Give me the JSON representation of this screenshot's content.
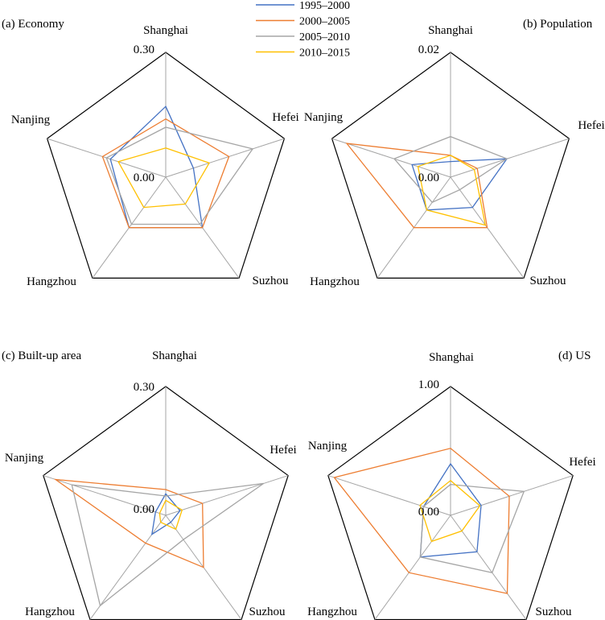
{
  "legend": [
    {
      "name": "1995–2000",
      "color": "#4472c4"
    },
    {
      "name": "2000–2005",
      "color": "#ed7d31"
    },
    {
      "name": "2005–2010",
      "color": "#a5a5a5"
    },
    {
      "name": "2010–2015",
      "color": "#ffc000"
    }
  ],
  "chart_data": [
    {
      "type": "radar",
      "title": "(a) Economy",
      "axes": [
        "Shanghai",
        "Hefei",
        "Suzhou",
        "Hangzhou",
        "Nanjing"
      ],
      "range": [
        0,
        0.3
      ],
      "tick_labels": [
        "0.00",
        "0.30"
      ],
      "series": [
        {
          "name": "1995–2000",
          "values": [
            0.17,
            0.07,
            0.15,
            0.15,
            0.14
          ]
        },
        {
          "name": "2000–2005",
          "values": [
            0.14,
            0.16,
            0.15,
            0.15,
            0.16
          ]
        },
        {
          "name": "2005–2010",
          "values": [
            0.12,
            0.22,
            0.14,
            0.14,
            0.15
          ]
        },
        {
          "name": "2010–2015",
          "values": [
            0.07,
            0.11,
            0.08,
            0.09,
            0.12
          ]
        }
      ]
    },
    {
      "type": "radar",
      "title": "(b) Population",
      "axes": [
        "Shanghai",
        "Hefei",
        "Suzhou",
        "Hangzhou",
        "Nanjing"
      ],
      "range": [
        0,
        0.02
      ],
      "tick_labels": [
        "0.00",
        "0.02"
      ],
      "series": [
        {
          "name": "1995–2000",
          "values": [
            0.0025,
            0.0095,
            0.006,
            0.0065,
            0.0065
          ]
        },
        {
          "name": "2000–2005",
          "values": [
            0.0035,
            0.0045,
            0.01,
            0.01,
            0.0175
          ]
        },
        {
          "name": "2005–2010",
          "values": [
            0.0065,
            0.0095,
            0.0025,
            0.005,
            0.0095
          ]
        },
        {
          "name": "2010–2015",
          "values": [
            0.0035,
            0.004,
            0.0095,
            0.0065,
            0.0055
          ]
        }
      ]
    },
    {
      "type": "radar",
      "title": "(c) Built-up area",
      "axes": [
        "Shanghai",
        "Hefei",
        "Suzhou",
        "Hangzhou",
        "Nanjing"
      ],
      "range": [
        0,
        0.3
      ],
      "tick_labels": [
        "0.00",
        "0.30"
      ],
      "series": [
        {
          "name": "1995–2000",
          "values": [
            0.05,
            0.035,
            0.02,
            0.055,
            0.025
          ]
        },
        {
          "name": "2000–2005",
          "values": [
            0.06,
            0.09,
            0.15,
            0.08,
            0.27
          ]
        },
        {
          "name": "2005–2010",
          "values": [
            0.045,
            0.24,
            0.07,
            0.26,
            0.23
          ]
        },
        {
          "name": "2010–2015",
          "values": [
            0.035,
            0.04,
            0.04,
            0.02,
            0.015
          ]
        }
      ]
    },
    {
      "type": "radar",
      "title": "(d) US",
      "axes": [
        "Shanghai",
        "Hefei",
        "Suzhou",
        "Hangzhou",
        "Nanjing"
      ],
      "range": [
        0,
        1.0
      ],
      "tick_labels": [
        "0.00",
        "1.00"
      ],
      "series": [
        {
          "name": "1995–2000",
          "values": [
            0.4,
            0.25,
            0.35,
            0.4,
            0.22
          ]
        },
        {
          "name": "2000–2005",
          "values": [
            0.52,
            0.48,
            0.75,
            0.55,
            0.95
          ]
        },
        {
          "name": "2005–2010",
          "values": [
            0.24,
            0.6,
            0.55,
            0.4,
            0.22
          ]
        },
        {
          "name": "2010–2015",
          "values": [
            0.27,
            0.24,
            0.15,
            0.25,
            0.25
          ]
        }
      ]
    }
  ]
}
